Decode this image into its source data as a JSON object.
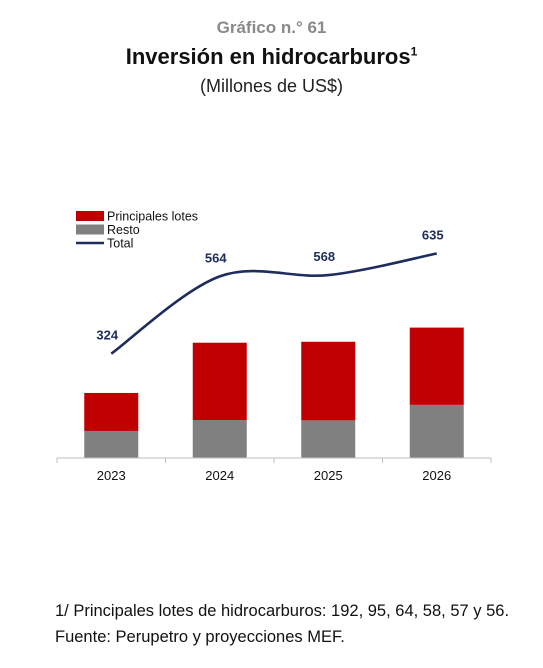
{
  "header": {
    "kicker": "Gráfico n.° 61",
    "title": "Inversión en hidrocarburos",
    "title_note": "1",
    "subtitle": "(Millones de US$)"
  },
  "chart_data": {
    "type": "bar",
    "stacked": true,
    "categories": [
      "2023",
      "2024",
      "2025",
      "2026"
    ],
    "series": [
      {
        "name": "Principales lotes",
        "kind": "bar",
        "color": "#C00000",
        "values": [
          118,
          240,
          244,
          240
        ]
      },
      {
        "name": "Resto",
        "kind": "bar",
        "color": "#808080",
        "values": [
          84,
          118,
          117,
          165
        ]
      },
      {
        "name": "Total",
        "kind": "line",
        "color": "#1F2D5C",
        "values": [
          324,
          564,
          568,
          635
        ],
        "labels": [
          "324",
          "564",
          "568",
          "635"
        ]
      }
    ],
    "legend": "top-left",
    "grid": false
  },
  "notes": {
    "footnote": "1/ Principales lotes de hidrocarburos: 192, 95, 64, 58, 57 y 56.",
    "source": "Fuente: Perupetro y proyecciones MEF."
  }
}
